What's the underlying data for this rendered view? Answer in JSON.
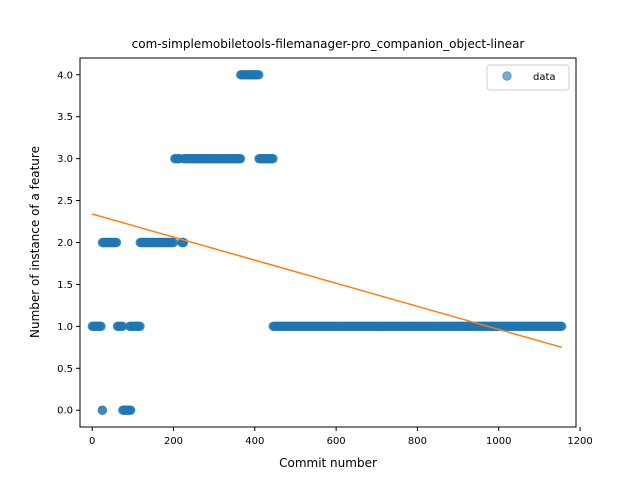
{
  "chart_data": {
    "type": "scatter",
    "title": "com-simplemobiletools-filemanager-pro_companion_object-linear",
    "xlabel": "Commit number",
    "ylabel": "Number of instance of a feature",
    "xlim": [
      -30,
      1190
    ],
    "ylim": [
      -0.2,
      4.2
    ],
    "x_ticks": [
      0,
      200,
      400,
      600,
      800,
      1000,
      1200
    ],
    "x_tick_labels": [
      "0",
      "200",
      "400",
      "600",
      "800",
      "1000",
      "1200"
    ],
    "y_ticks": [
      0.0,
      0.5,
      1.0,
      1.5,
      2.0,
      2.5,
      3.0,
      3.5,
      4.0
    ],
    "y_tick_labels": [
      "0.0",
      "0.5",
      "1.0",
      "1.5",
      "2.0",
      "2.5",
      "3.0",
      "3.5",
      "4.0"
    ],
    "legend": {
      "position": "top-right",
      "entries": [
        "data"
      ]
    },
    "grid": false,
    "colors": {
      "data": "#1f77b4",
      "fit": "#ff7f0e"
    },
    "data_segments": [
      {
        "x_start": 0,
        "x_end": 22,
        "y": 1
      },
      {
        "x_start": 25,
        "x_end": 25,
        "y": 0
      },
      {
        "x_start": 25,
        "x_end": 60,
        "y": 2
      },
      {
        "x_start": 62,
        "x_end": 75,
        "y": 1
      },
      {
        "x_start": 75,
        "x_end": 95,
        "y": 0
      },
      {
        "x_start": 92,
        "x_end": 118,
        "y": 1
      },
      {
        "x_start": 118,
        "x_end": 200,
        "y": 2
      },
      {
        "x_start": 203,
        "x_end": 215,
        "y": 3
      },
      {
        "x_start": 220,
        "x_end": 225,
        "y": 2
      },
      {
        "x_start": 225,
        "x_end": 365,
        "y": 3
      },
      {
        "x_start": 365,
        "x_end": 410,
        "y": 4
      },
      {
        "x_start": 410,
        "x_end": 445,
        "y": 3
      },
      {
        "x_start": 445,
        "x_end": 1155,
        "y": 1
      }
    ],
    "fit_line": {
      "x": [
        0,
        1155
      ],
      "y": [
        2.34,
        0.75
      ]
    }
  }
}
